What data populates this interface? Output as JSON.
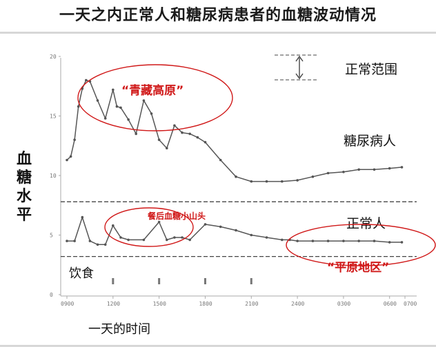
{
  "title": "一天之内正常人和糖尿病患者的血糖波动情况",
  "chart_data": {
    "type": "line",
    "ylabel": "血糖水平",
    "xlabel": "一天的时间",
    "ylim": [
      0,
      20
    ],
    "y_ticks": [
      "0",
      "5",
      "10",
      "15",
      "20"
    ],
    "x_ticks": [
      "0900",
      "1200",
      "1500",
      "1800",
      "2100",
      "2400",
      "0300",
      "0600",
      "0700"
    ],
    "series": [
      {
        "name": "糖尿病人",
        "color": "#555555",
        "x": [
          0,
          0.25,
          0.5,
          0.75,
          1,
          1.25,
          1.5,
          2,
          2.5,
          3,
          3.25,
          3.5,
          4,
          4.5,
          5,
          5.5,
          6,
          6.5,
          7,
          7.5,
          8,
          8.5,
          9,
          10,
          11,
          12,
          13,
          14,
          15,
          16,
          17,
          18,
          19,
          20,
          21,
          21.8
        ],
        "values": [
          11.3,
          11.6,
          13.0,
          15.8,
          17.3,
          18.0,
          17.9,
          16.3,
          14.8,
          17.2,
          15.8,
          15.7,
          14.7,
          13.5,
          16.3,
          15.2,
          13.0,
          12.3,
          14.2,
          13.6,
          13.5,
          13.2,
          12.8,
          11.3,
          9.9,
          9.5,
          9.5,
          9.5,
          9.6,
          9.9,
          10.2,
          10.3,
          10.5,
          10.5,
          10.6,
          10.7
        ]
      },
      {
        "name": "正常人",
        "color": "#555555",
        "x": [
          0,
          0.5,
          1,
          1.5,
          2,
          2.5,
          3,
          3.5,
          4,
          5,
          6,
          6.5,
          7,
          7.5,
          8,
          9,
          10,
          11,
          12,
          13,
          14,
          14.5,
          15,
          16,
          17,
          18,
          19,
          20,
          21,
          21.8
        ],
        "values": [
          4.5,
          4.5,
          6.5,
          4.5,
          4.2,
          4.2,
          5.8,
          4.8,
          4.6,
          4.6,
          6.1,
          4.6,
          4.8,
          4.8,
          4.6,
          5.9,
          5.7,
          5.4,
          5.0,
          4.8,
          4.6,
          4.6,
          4.5,
          4.5,
          4.5,
          4.5,
          4.5,
          4.5,
          4.4,
          4.4
        ]
      }
    ],
    "reference_lines": [
      7.8,
      3.2
    ],
    "legend": {
      "range_label": "正常范围",
      "diabetic_label": "糖尿病人",
      "normal_label": "正常人"
    },
    "annotations": {
      "plateau": "“青藏高原”",
      "hills": "餐后血糖小山头",
      "plain": "“平原地区”",
      "meal": "饮食"
    },
    "meal_times": [
      3,
      6,
      9,
      12
    ],
    "grid": false
  }
}
